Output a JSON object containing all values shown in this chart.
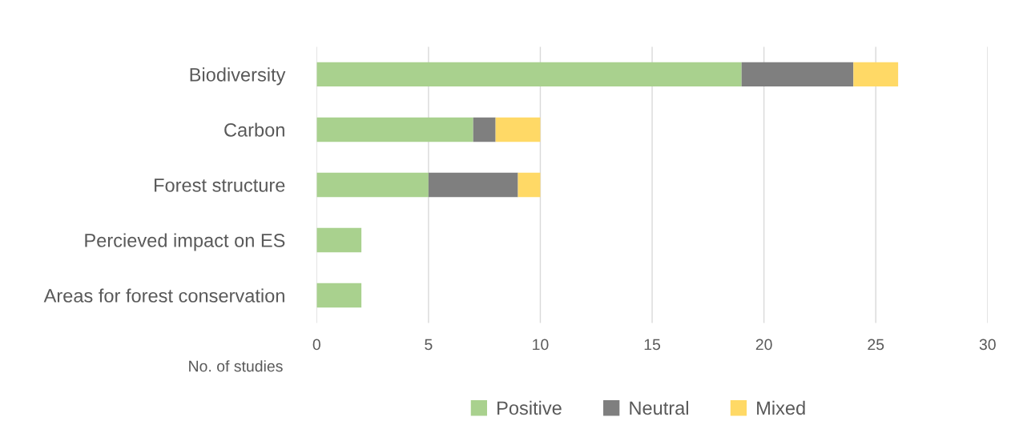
{
  "chart_data": {
    "type": "bar",
    "orientation": "horizontal",
    "stacked": true,
    "categories": [
      "Biodiversity",
      "Carbon",
      "Forest structure",
      "Percieved impact on ES",
      "Areas for forest conservation"
    ],
    "series": [
      {
        "name": "Positive",
        "color": "#a9d18e",
        "values": [
          19,
          7,
          5,
          2,
          2
        ]
      },
      {
        "name": "Neutral",
        "color": "#7f7f7f",
        "values": [
          5,
          1,
          4,
          0,
          0
        ]
      },
      {
        "name": "Mixed",
        "color": "#ffd966",
        "values": [
          2,
          2,
          1,
          0,
          0
        ]
      }
    ],
    "xlabel": "No. of studies",
    "xlim": [
      0,
      30
    ],
    "xticks": [
      0,
      5,
      10,
      15,
      20,
      25,
      30
    ],
    "grid": "x",
    "legend": "bottom"
  }
}
